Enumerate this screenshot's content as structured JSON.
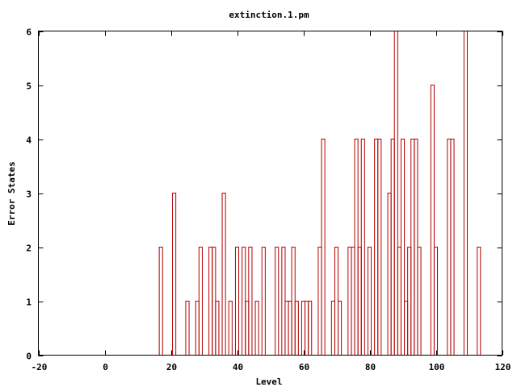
{
  "chart_data": {
    "type": "bar",
    "style": "impulse-steps",
    "title": "extinction.1.pm",
    "xlabel": "Level",
    "ylabel": "Error States",
    "xlim": [
      -20,
      120
    ],
    "ylim": [
      0,
      6
    ],
    "xticks": [
      -20,
      0,
      20,
      40,
      60,
      80,
      100,
      120
    ],
    "yticks": [
      0,
      1,
      2,
      3,
      4,
      5,
      6
    ],
    "grid": false,
    "line_color": "#b40000",
    "points": [
      {
        "x": 17,
        "y": 2
      },
      {
        "x": 21,
        "y": 3
      },
      {
        "x": 25,
        "y": 1
      },
      {
        "x": 28,
        "y": 1
      },
      {
        "x": 29,
        "y": 2
      },
      {
        "x": 32,
        "y": 2
      },
      {
        "x": 33,
        "y": 2
      },
      {
        "x": 34,
        "y": 1
      },
      {
        "x": 36,
        "y": 3
      },
      {
        "x": 38,
        "y": 1
      },
      {
        "x": 40,
        "y": 2
      },
      {
        "x": 42,
        "y": 2
      },
      {
        "x": 43,
        "y": 1
      },
      {
        "x": 44,
        "y": 2
      },
      {
        "x": 46,
        "y": 1
      },
      {
        "x": 48,
        "y": 2
      },
      {
        "x": 52,
        "y": 2
      },
      {
        "x": 54,
        "y": 2
      },
      {
        "x": 55,
        "y": 1
      },
      {
        "x": 56,
        "y": 1
      },
      {
        "x": 57,
        "y": 2
      },
      {
        "x": 58,
        "y": 1
      },
      {
        "x": 60,
        "y": 1
      },
      {
        "x": 61,
        "y": 1
      },
      {
        "x": 62,
        "y": 1
      },
      {
        "x": 65,
        "y": 2
      },
      {
        "x": 66,
        "y": 4
      },
      {
        "x": 69,
        "y": 1
      },
      {
        "x": 70,
        "y": 2
      },
      {
        "x": 71,
        "y": 1
      },
      {
        "x": 74,
        "y": 2
      },
      {
        "x": 75,
        "y": 2
      },
      {
        "x": 76,
        "y": 4
      },
      {
        "x": 77,
        "y": 2
      },
      {
        "x": 78,
        "y": 4
      },
      {
        "x": 80,
        "y": 2
      },
      {
        "x": 82,
        "y": 4
      },
      {
        "x": 83,
        "y": 4
      },
      {
        "x": 86,
        "y": 3
      },
      {
        "x": 87,
        "y": 4
      },
      {
        "x": 88,
        "y": 6
      },
      {
        "x": 89,
        "y": 2
      },
      {
        "x": 90,
        "y": 4
      },
      {
        "x": 91,
        "y": 1
      },
      {
        "x": 92,
        "y": 2
      },
      {
        "x": 93,
        "y": 4
      },
      {
        "x": 94,
        "y": 4
      },
      {
        "x": 95,
        "y": 2
      },
      {
        "x": 99,
        "y": 5
      },
      {
        "x": 100,
        "y": 2
      },
      {
        "x": 104,
        "y": 4
      },
      {
        "x": 105,
        "y": 4
      },
      {
        "x": 109,
        "y": 6
      },
      {
        "x": 113,
        "y": 2
      }
    ]
  }
}
